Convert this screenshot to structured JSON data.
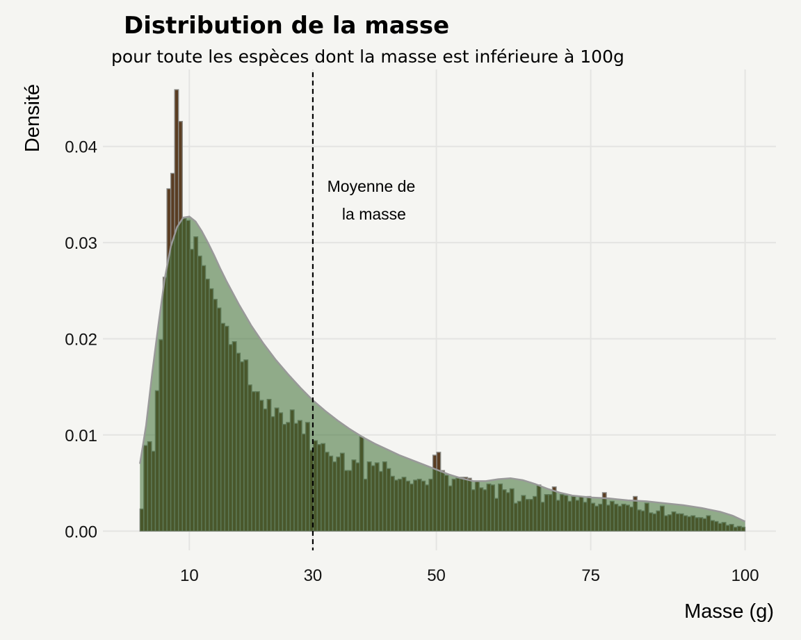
{
  "chart_data": {
    "type": "bar",
    "title": "Distribution de la masse",
    "subtitle": "pour toute les espèces dont la masse est inférieure à 100g",
    "xlabel": "Masse (g)",
    "ylabel": "Densité",
    "x_ticks": [
      10,
      30,
      50,
      75,
      100
    ],
    "y_ticks": [
      "0.00",
      "0.01",
      "0.02",
      "0.03",
      "0.04"
    ],
    "xlim": [
      -4,
      105
    ],
    "ylim": [
      -0.002,
      0.048
    ],
    "bin_width": 1,
    "bin_start": 2,
    "histogram_density": [
      0.0023,
      0.0089,
      0.0093,
      0.0083,
      0.0146,
      0.0199,
      0.0264,
      0.0356,
      0.0372,
      0.0459,
      0.0426,
      0.0325,
      0.0323,
      0.0293,
      0.0306,
      0.0286,
      0.0276,
      0.0262,
      0.0252,
      0.0241,
      0.0232,
      0.0216,
      0.0213,
      0.0194,
      0.0197,
      0.0185,
      0.0176,
      0.0178,
      0.0152,
      0.0145,
      0.0145,
      0.0136,
      0.0127,
      0.0137,
      0.0119,
      0.0128,
      0.0123,
      0.0111,
      0.0113,
      0.0126,
      0.0112,
      0.0115,
      0.0101,
      0.0113,
      0.0084,
      0.0094,
      0.009,
      0.0091,
      0.0082,
      0.0078,
      0.0072,
      0.0077,
      0.0081,
      0.0063,
      0.0063,
      0.0074,
      0.0071,
      0.0098,
      0.0054,
      0.0072,
      0.0068,
      0.0071,
      0.0062,
      0.0072,
      0.0065,
      0.0057,
      0.0053,
      0.0054,
      0.0056,
      0.0052,
      0.0049,
      0.0053,
      0.0054,
      0.0052,
      0.0048,
      0.0054,
      0.0079,
      0.0082,
      0.0063,
      0.0058,
      0.0047,
      0.0054,
      0.0055,
      0.0056,
      0.0056,
      0.0055,
      0.0043,
      0.0052,
      0.0045,
      0.0043,
      0.0049,
      0.0048,
      0.0034,
      0.0049,
      0.0043,
      0.004,
      0.0044,
      0.0029,
      0.0031,
      0.0037,
      0.0033,
      0.0033,
      0.0036,
      0.0048,
      0.003,
      0.0038,
      0.0038,
      0.0046,
      0.0032,
      0.0038,
      0.0037,
      0.0031,
      0.0036,
      0.0032,
      0.0036,
      0.003,
      0.0036,
      0.0029,
      0.0026,
      0.0028,
      0.004,
      0.0027,
      0.0031,
      0.0028,
      0.0026,
      0.0028,
      0.0027,
      0.0025,
      0.0036,
      0.0022,
      0.0021,
      0.0029,
      0.0019,
      0.0018,
      0.0021,
      0.0026,
      0.0016,
      0.0017,
      0.002,
      0.0018,
      0.0018,
      0.0016,
      0.0015,
      0.0016,
      0.0014,
      0.0014,
      0.0013,
      0.0016,
      0.0011,
      0.001,
      0.0008,
      0.0009,
      0.0006,
      0.0007,
      0.0004,
      0.0005,
      0.0004
    ],
    "density_curve": [
      [
        2,
        0.007
      ],
      [
        3,
        0.011
      ],
      [
        4,
        0.0165
      ],
      [
        5,
        0.0215
      ],
      [
        6,
        0.0262
      ],
      [
        7,
        0.0296
      ],
      [
        8,
        0.0316
      ],
      [
        9,
        0.0326
      ],
      [
        10,
        0.0327
      ],
      [
        11,
        0.0322
      ],
      [
        12,
        0.0312
      ],
      [
        13,
        0.03
      ],
      [
        14,
        0.0287
      ],
      [
        15,
        0.0273
      ],
      [
        16,
        0.026
      ],
      [
        17,
        0.0248
      ],
      [
        18,
        0.0236
      ],
      [
        19,
        0.0225
      ],
      [
        20,
        0.0214
      ],
      [
        22,
        0.0195
      ],
      [
        24,
        0.0178
      ],
      [
        26,
        0.0163
      ],
      [
        28,
        0.0149
      ],
      [
        30,
        0.0136
      ],
      [
        32,
        0.0125
      ],
      [
        34,
        0.0115
      ],
      [
        36,
        0.0106
      ],
      [
        38,
        0.0098
      ],
      [
        40,
        0.0091
      ],
      [
        42,
        0.0085
      ],
      [
        44,
        0.0079
      ],
      [
        46,
        0.0074
      ],
      [
        48,
        0.0069
      ],
      [
        50,
        0.0064
      ],
      [
        52,
        0.0059
      ],
      [
        54,
        0.0055
      ],
      [
        56,
        0.0052
      ],
      [
        58,
        0.0052
      ],
      [
        60,
        0.0054
      ],
      [
        62,
        0.0055
      ],
      [
        64,
        0.0053
      ],
      [
        66,
        0.0049
      ],
      [
        68,
        0.0044
      ],
      [
        70,
        0.004
      ],
      [
        72,
        0.0037
      ],
      [
        75,
        0.0035
      ],
      [
        78,
        0.0034
      ],
      [
        81,
        0.0032
      ],
      [
        84,
        0.0031
      ],
      [
        87,
        0.0029
      ],
      [
        90,
        0.0027
      ],
      [
        93,
        0.0024
      ],
      [
        96,
        0.002
      ],
      [
        98,
        0.0016
      ],
      [
        100,
        0.001
      ]
    ],
    "mean_line": {
      "x": 30,
      "label_line1": "Moyenne de",
      "label_line2": "la masse"
    },
    "colors": {
      "background": "#f5f5f2",
      "bar_fill": "#5a3d22",
      "bar_stroke": "#8a8a86",
      "density_fill": "#3c6d33",
      "density_stroke": "#999999",
      "grid": "#e4e4e2"
    },
    "grid": true,
    "legend": "none"
  }
}
